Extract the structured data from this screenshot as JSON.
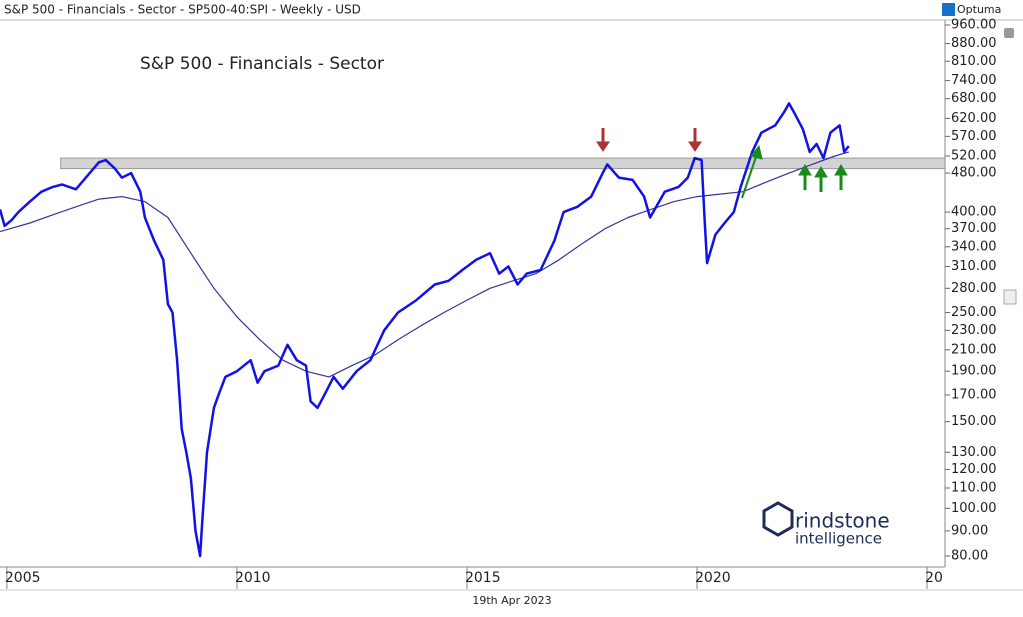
{
  "chart_data": {
    "type": "line",
    "title": "S&P 500 - Financials - Sector - SP500-40:SPI - Weekly - USD",
    "brand": "Optuma",
    "chart_label": "S&P 500 - Financials - Sector",
    "logo": [
      "rindstone",
      "intelligence"
    ],
    "date_label": "19th Apr 2023",
    "log_scale": true,
    "xlim": [
      2004.85,
      2025.39
    ],
    "ylim": [
      76,
      1054
    ],
    "xticks": [
      2005,
      2010,
      2015,
      2020,
      {
        "value": 2025,
        "label": "20"
      }
    ],
    "yticks": [
      {
        "value": 960,
        "label": "960.00"
      },
      {
        "value": 880,
        "label": "880.00"
      },
      {
        "value": 810,
        "label": "810.00"
      },
      {
        "value": 740,
        "label": "740.00"
      },
      {
        "value": 680,
        "label": "680.00"
      },
      {
        "value": 620,
        "label": "620.00"
      },
      {
        "value": 570,
        "label": "570.00"
      },
      {
        "value": 520,
        "label": "520.00"
      },
      {
        "value": 480,
        "label": "480.00"
      },
      {
        "value": 400,
        "label": "400.00"
      },
      {
        "value": 370,
        "label": "370.00"
      },
      {
        "value": 340,
        "label": "340.00"
      },
      {
        "value": 310,
        "label": "310.00"
      },
      {
        "value": 280,
        "label": "280.00"
      },
      {
        "value": 250,
        "label": "250.00"
      },
      {
        "value": 230,
        "label": "230.00"
      },
      {
        "value": 210,
        "label": "210.00"
      },
      {
        "value": 190,
        "label": "190.00"
      },
      {
        "value": 170,
        "label": "170.00"
      },
      {
        "value": 150,
        "label": "150.00"
      },
      {
        "value": 130,
        "label": "130.00"
      },
      {
        "value": 120,
        "label": "120.00"
      },
      {
        "value": 110,
        "label": "110.00"
      },
      {
        "value": 100,
        "label": "100.00"
      },
      {
        "value": 90,
        "label": "90.00"
      },
      {
        "value": 80,
        "label": "80.00"
      }
    ],
    "band": {
      "x": [
        2006.17,
        2025.39
      ],
      "y": [
        490,
        515
      ],
      "color": "#d3d3d3"
    },
    "series": [
      {
        "color": "#1212e6",
        "width": 2.5,
        "x": [
          2004.85,
          2004.95,
          2005.1,
          2005.25,
          2005.5,
          2005.75,
          2006.0,
          2006.2,
          2006.5,
          2006.8,
          2007.0,
          2007.15,
          2007.35,
          2007.5,
          2007.7,
          2007.9,
          2008.0,
          2008.2,
          2008.4,
          2008.5,
          2008.6,
          2008.7,
          2008.8,
          2008.9,
          2009.0,
          2009.1,
          2009.2,
          2009.25,
          2009.35,
          2009.5,
          2009.6,
          2009.75,
          2010.0,
          2010.3,
          2010.45,
          2010.6,
          2010.9,
          2011.1,
          2011.3,
          2011.5,
          2011.6,
          2011.75,
          2011.9,
          2012.1,
          2012.3,
          2012.6,
          2012.9,
          2013.2,
          2013.5,
          2013.9,
          2014.3,
          2014.6,
          2014.9,
          2015.2,
          2015.5,
          2015.7,
          2015.9,
          2016.1,
          2016.3,
          2016.6,
          2016.9,
          2017.1,
          2017.4,
          2017.7,
          2017.95,
          2018.05,
          2018.3,
          2018.6,
          2018.85,
          2018.98,
          2019.3,
          2019.6,
          2019.8,
          2019.95,
          2020.1,
          2020.17,
          2020.22,
          2020.4,
          2020.6,
          2020.8,
          2020.95,
          2021.2,
          2021.4,
          2021.7,
          2021.9,
          2022.0,
          2022.1,
          2022.3,
          2022.45,
          2022.6,
          2022.75,
          2022.9,
          2023.0,
          2023.1,
          2023.2,
          2023.3
        ],
        "values": [
          405,
          375,
          385,
          400,
          420,
          440,
          450,
          455,
          445,
          480,
          505,
          510,
          490,
          470,
          480,
          440,
          390,
          350,
          320,
          260,
          250,
          200,
          145,
          130,
          115,
          90,
          80,
          95,
          130,
          160,
          170,
          185,
          190,
          200,
          180,
          190,
          195,
          215,
          200,
          195,
          165,
          160,
          170,
          185,
          175,
          190,
          200,
          230,
          250,
          265,
          285,
          290,
          305,
          320,
          330,
          300,
          310,
          285,
          300,
          305,
          350,
          400,
          410,
          430,
          480,
          500,
          470,
          465,
          430,
          390,
          440,
          450,
          470,
          515,
          510,
          380,
          315,
          360,
          380,
          400,
          450,
          530,
          580,
          600,
          640,
          665,
          640,
          590,
          530,
          550,
          515,
          580,
          590,
          600,
          530,
          545
        ]
      },
      {
        "color": "#34349c",
        "width": 1.2,
        "x": [
          2004.85,
          2005.5,
          2006.0,
          2006.5,
          2007.0,
          2007.5,
          2008.0,
          2008.5,
          2009.0,
          2009.5,
          2010.0,
          2010.5,
          2011.0,
          2011.5,
          2012.0,
          2012.5,
          2013.0,
          2013.5,
          2014.0,
          2014.5,
          2015.0,
          2015.5,
          2016.0,
          2016.5,
          2017.0,
          2017.5,
          2018.0,
          2018.5,
          2019.0,
          2019.5,
          2020.0,
          2020.5,
          2021.0,
          2021.5,
          2022.0,
          2022.5,
          2023.0,
          2023.3
        ],
        "values": [
          365,
          380,
          395,
          410,
          425,
          430,
          420,
          390,
          330,
          280,
          245,
          220,
          200,
          190,
          185,
          195,
          205,
          220,
          235,
          250,
          265,
          280,
          290,
          300,
          320,
          345,
          370,
          390,
          405,
          420,
          430,
          435,
          440,
          460,
          480,
          500,
          520,
          530
        ]
      }
    ]
  }
}
